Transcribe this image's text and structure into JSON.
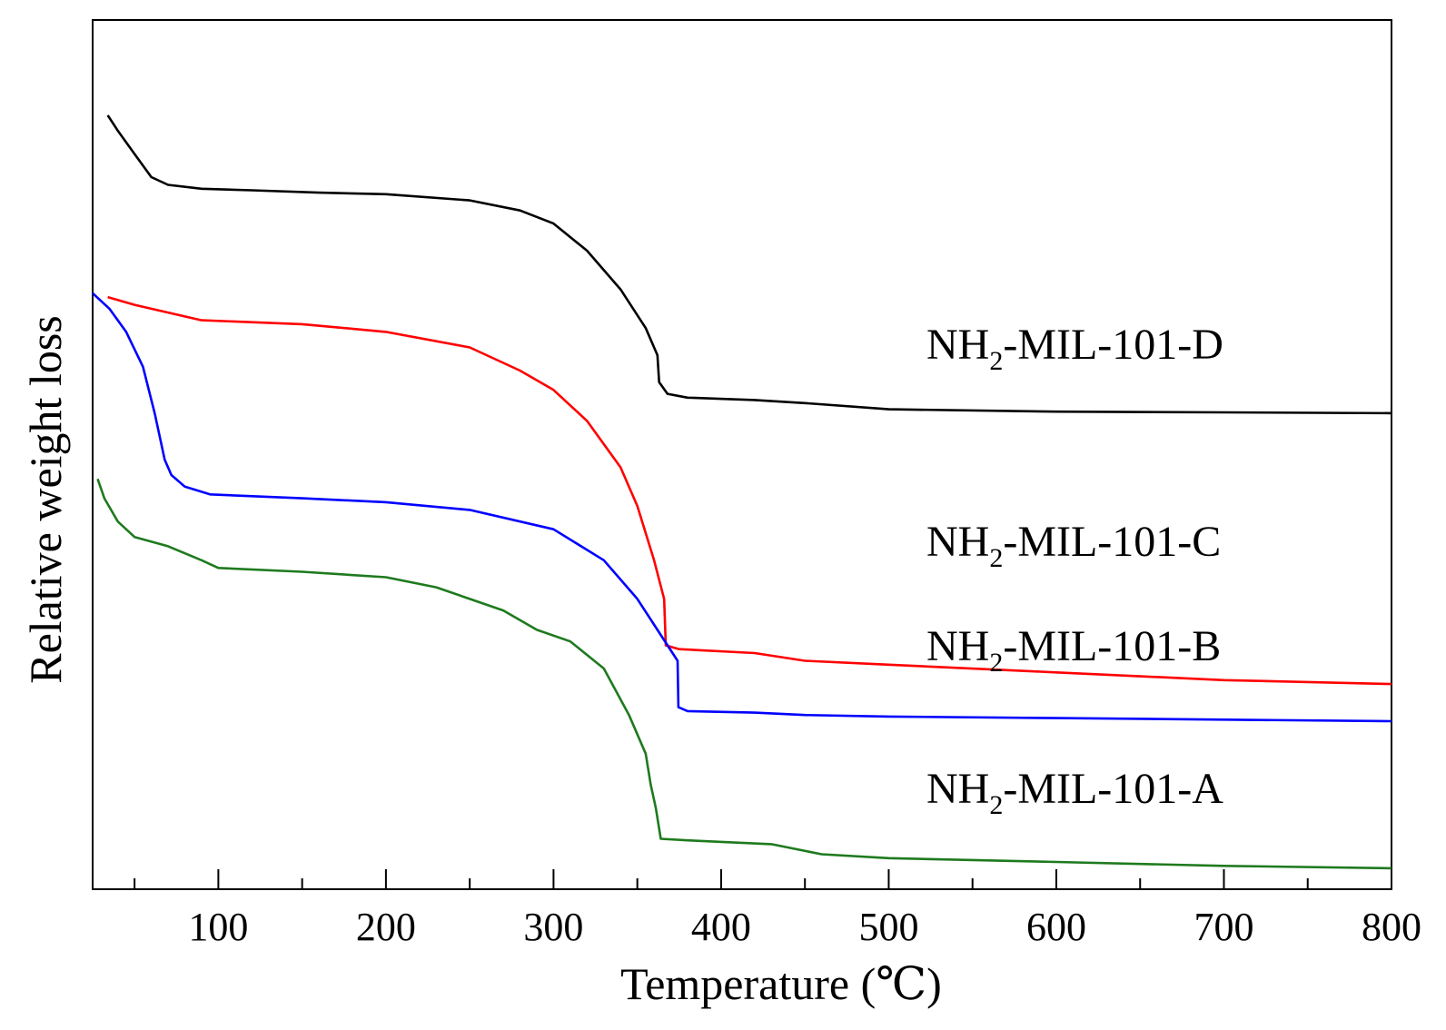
{
  "chart_data": {
    "type": "line",
    "xlabel": "Temperature (℃)",
    "ylabel": "Relative weight loss",
    "xlim": [
      25,
      800
    ],
    "ylim": [
      0,
      100
    ],
    "x_ticks_major": [
      100,
      200,
      300,
      400,
      500,
      600,
      700,
      800
    ],
    "x_ticks_minor": [
      50,
      150,
      250,
      350,
      450,
      550,
      650,
      750
    ],
    "y_ticks_shown": false,
    "grid": false,
    "legend": "inline labels at right",
    "series": [
      {
        "label_main": "NH",
        "label_sub": "2",
        "label_rest": "-MIL-101-D",
        "color": "#000000",
        "points": [
          [
            34,
            94.5
          ],
          [
            40,
            92.5
          ],
          [
            50,
            89.5
          ],
          [
            60,
            86.5
          ],
          [
            70,
            85.5
          ],
          [
            90,
            85
          ],
          [
            120,
            84.8
          ],
          [
            160,
            84.5
          ],
          [
            200,
            84.3
          ],
          [
            250,
            83.5
          ],
          [
            280,
            82.2
          ],
          [
            300,
            80.5
          ],
          [
            320,
            77
          ],
          [
            340,
            72
          ],
          [
            355,
            67
          ],
          [
            362,
            63.5
          ],
          [
            363,
            60
          ],
          [
            368,
            58.5
          ],
          [
            380,
            58
          ],
          [
            420,
            57.7
          ],
          [
            450,
            57.3
          ],
          [
            500,
            56.5
          ],
          [
            600,
            56.2
          ],
          [
            700,
            56.1
          ],
          [
            800,
            56
          ]
        ]
      },
      {
        "label_main": "NH",
        "label_sub": "2",
        "label_rest": "-MIL-101-C",
        "color": "#ff0000",
        "points": [
          [
            34,
            71
          ],
          [
            50,
            70
          ],
          [
            70,
            69
          ],
          [
            90,
            68
          ],
          [
            150,
            67.5
          ],
          [
            200,
            66.5
          ],
          [
            250,
            64.5
          ],
          [
            280,
            61.5
          ],
          [
            300,
            59
          ],
          [
            320,
            55
          ],
          [
            340,
            49
          ],
          [
            350,
            44
          ],
          [
            360,
            37
          ],
          [
            366,
            32
          ],
          [
            367,
            26
          ],
          [
            375,
            25.5
          ],
          [
            420,
            25
          ],
          [
            450,
            24
          ],
          [
            500,
            23.5
          ],
          [
            600,
            22.5
          ],
          [
            700,
            21.5
          ],
          [
            800,
            21
          ]
        ]
      },
      {
        "label_main": "NH",
        "label_sub": "2",
        "label_rest": "-MIL-101-B",
        "color": "#0000ff",
        "points": [
          [
            25,
            71.5
          ],
          [
            35,
            69.5
          ],
          [
            45,
            66.5
          ],
          [
            55,
            62
          ],
          [
            62,
            56
          ],
          [
            68,
            50
          ],
          [
            72,
            48
          ],
          [
            80,
            46.5
          ],
          [
            95,
            45.5
          ],
          [
            150,
            45
          ],
          [
            200,
            44.5
          ],
          [
            250,
            43.5
          ],
          [
            300,
            41
          ],
          [
            330,
            37
          ],
          [
            350,
            32
          ],
          [
            365,
            27
          ],
          [
            374,
            24
          ],
          [
            374.5,
            18
          ],
          [
            380,
            17.5
          ],
          [
            420,
            17.3
          ],
          [
            450,
            17
          ],
          [
            500,
            16.8
          ],
          [
            600,
            16.6
          ],
          [
            700,
            16.4
          ],
          [
            800,
            16.2
          ]
        ]
      },
      {
        "label_main": "NH",
        "label_sub": "2",
        "label_rest": "-MIL-101-A",
        "color": "#1e7a1e",
        "points": [
          [
            28,
            47.5
          ],
          [
            32,
            45
          ],
          [
            40,
            42
          ],
          [
            50,
            40
          ],
          [
            70,
            38.8
          ],
          [
            90,
            37
          ],
          [
            100,
            36
          ],
          [
            150,
            35.5
          ],
          [
            200,
            34.8
          ],
          [
            230,
            33.5
          ],
          [
            250,
            32
          ],
          [
            270,
            30.5
          ],
          [
            290,
            28
          ],
          [
            310,
            26.5
          ],
          [
            330,
            23
          ],
          [
            345,
            17
          ],
          [
            355,
            12
          ],
          [
            358,
            8
          ],
          [
            361,
            5
          ],
          [
            364,
            1
          ],
          [
            380,
            0.8
          ],
          [
            430,
            0.3
          ],
          [
            460,
            -1
          ],
          [
            500,
            -1.5
          ],
          [
            600,
            -2
          ],
          [
            700,
            -2.5
          ],
          [
            800,
            -2.8
          ]
        ]
      }
    ]
  }
}
